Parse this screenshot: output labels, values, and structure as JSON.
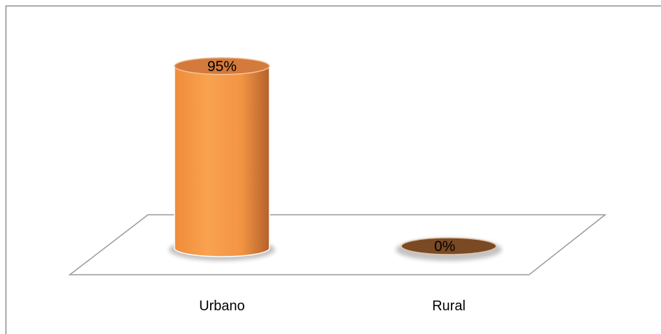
{
  "chart_data": {
    "type": "bar",
    "categories": [
      "Urbano",
      "Rural"
    ],
    "values": [
      95,
      0
    ],
    "data_labels": [
      "95%",
      "0%"
    ],
    "ylim": [
      0,
      100
    ],
    "title": "",
    "xlabel": "",
    "ylabel": "",
    "grid": false,
    "legend": "none",
    "colors": {
      "bar_light": "#f9a24f",
      "bar_mid": "#ef8c3b",
      "bar_dark": "#b4612b",
      "top_fill": "#d47a3c",
      "zero_fill": "#7a4a24",
      "floor_stroke": "#9a9a9a",
      "frame_stroke": "#8c8c8c"
    }
  }
}
